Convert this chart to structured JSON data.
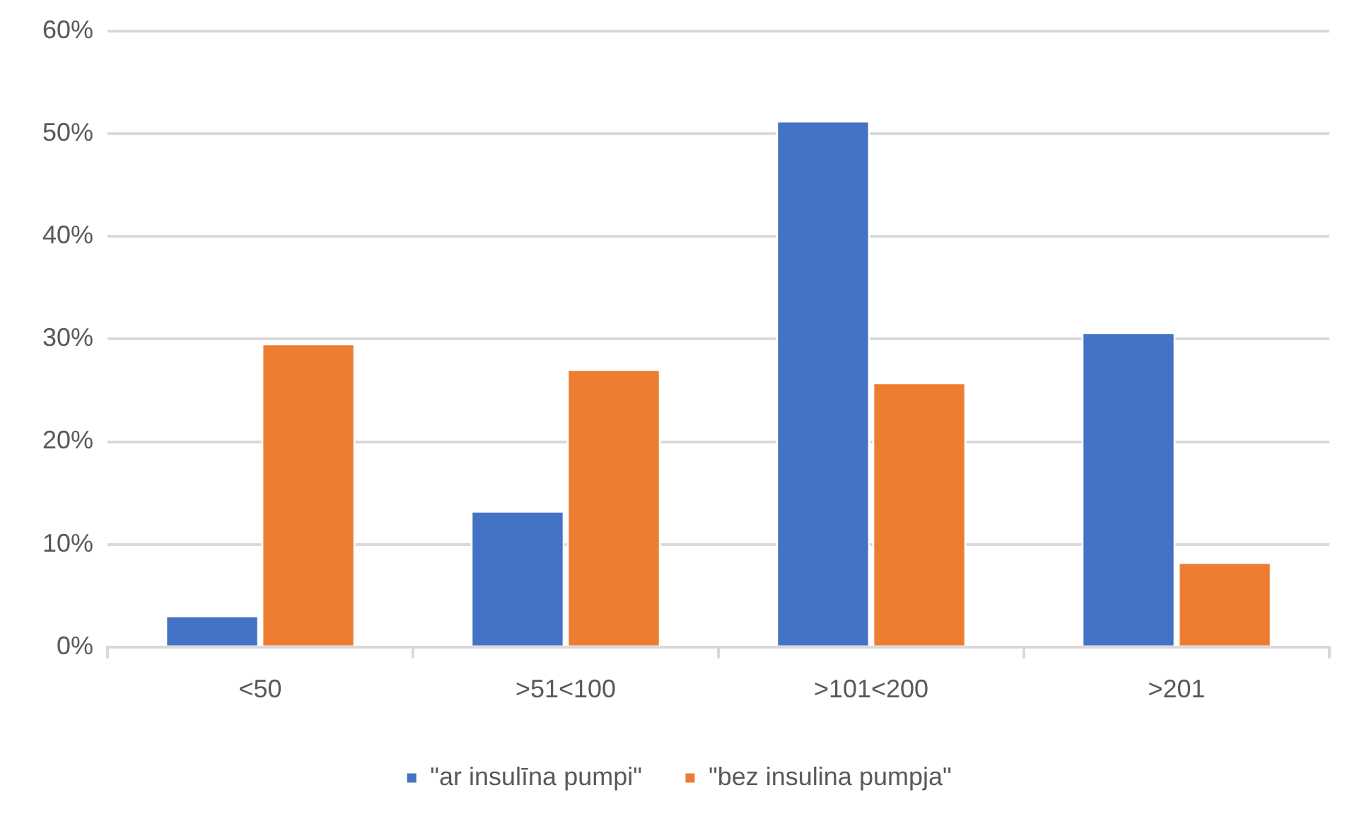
{
  "chart_data": {
    "type": "bar",
    "categories": [
      "<50",
      ">51<100",
      ">101<200",
      ">201"
    ],
    "series": [
      {
        "name": "\"ar insulīna pumpi\"",
        "color": "#4472c4",
        "values": [
          3.1,
          13.3,
          51.3,
          30.7
        ]
      },
      {
        "name": "\"bez insulina pumpja\"",
        "color": "#ed7d31",
        "values": [
          29.6,
          27.1,
          25.8,
          8.3
        ]
      }
    ],
    "ylim": [
      0,
      60
    ],
    "yticks": [
      {
        "value": 0,
        "label": "0%"
      },
      {
        "value": 10,
        "label": "10%"
      },
      {
        "value": 20,
        "label": "20%"
      },
      {
        "value": 30,
        "label": "30%"
      },
      {
        "value": 40,
        "label": "40%"
      },
      {
        "value": 50,
        "label": "50%"
      },
      {
        "value": 60,
        "label": "60%"
      }
    ],
    "grid": "y",
    "legend": "bottom"
  }
}
